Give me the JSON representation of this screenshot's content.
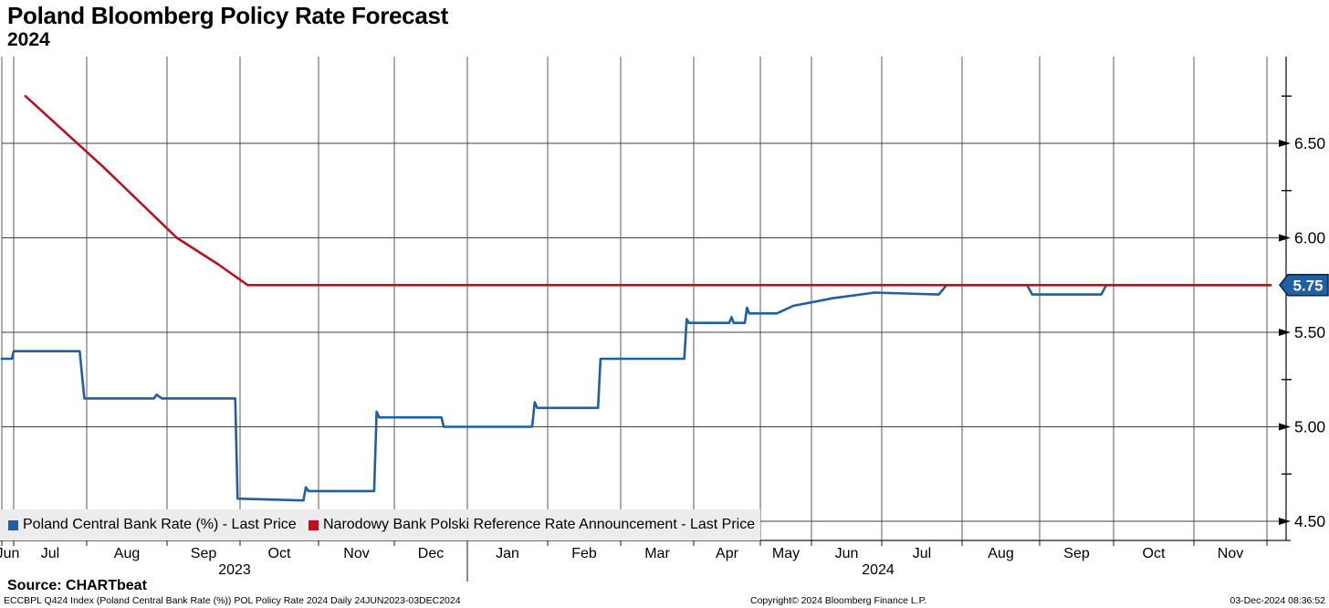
{
  "header": {
    "title": "Poland Bloomberg Policy Rate Forecast",
    "subtitle": "2024"
  },
  "legend": {
    "items": [
      {
        "label": "Poland Central Bank Rate (%) - Last Price",
        "color": "#1f5fa5"
      },
      {
        "label": "Narodowy Bank Polski Reference Rate Announcement - Last Price",
        "color": "#be0f1e"
      }
    ]
  },
  "footer": {
    "source": "Source: CHARTbeat",
    "ticker_line": "ECCBPL Q424 Index (Poland Central Bank Rate (%)) POL Policy Rate 2024  Daily 24JUN2023-03DEC2024",
    "copyright": "Copyright© 2024 Bloomberg Finance L.P.",
    "timestamp": "03-Dec-2024 08:36:52"
  },
  "colors": {
    "blue": "#1f5fa5",
    "red": "#be0f1e",
    "grid_horizontal": "#3f3f3f",
    "grid_vertical": "#5a5a5a",
    "axis": "#1a1a1a",
    "legend_bg": "#ececec",
    "tag_bg": "#1f5fa5",
    "tag_border": "#0a2540",
    "tag_text": "#ffffff"
  },
  "chart_data": {
    "type": "line",
    "title": "Poland Bloomberg Policy Rate Forecast 2024",
    "grid": true,
    "legend_position": "bottom",
    "y_axis": {
      "side": "right",
      "range": [
        4.3,
        7.05
      ],
      "tick_values": [
        6.5,
        6.0,
        5.5,
        5.0,
        4.5
      ],
      "tick_labels": [
        "6.50",
        "6.00",
        "5.50",
        "5.00",
        "4.50"
      ],
      "minor_tick_values": [
        6.75,
        6.25,
        5.25,
        4.75
      ],
      "last_price_value": 5.75,
      "last_price_label": "5.75"
    },
    "x_axis": {
      "start": "2023-06-24",
      "end": "2024-12-03",
      "month_labels": [
        "Jun",
        "Jul",
        "Aug",
        "Sep",
        "Oct",
        "Nov",
        "Dec",
        "Jan",
        "Feb",
        "Mar",
        "Apr",
        "May",
        "Jun",
        "Jul",
        "Aug",
        "Sep",
        "Oct",
        "Nov"
      ],
      "year_labels": [
        "2023",
        "2024"
      ]
    },
    "series": [
      {
        "name": "Poland Central Bank Rate (%) - Last Price",
        "color": "#1f5fa5",
        "points": [
          [
            "2023-06-24",
            5.36
          ],
          [
            "2023-06-30",
            5.36
          ],
          [
            "2023-07-01",
            5.4
          ],
          [
            "2023-07-29",
            5.4
          ],
          [
            "2023-07-31",
            5.15
          ],
          [
            "2023-08-27",
            5.15
          ],
          [
            "2023-08-28",
            5.17
          ],
          [
            "2023-08-30",
            5.15
          ],
          [
            "2023-09-29",
            5.15
          ],
          [
            "2023-09-30",
            4.62
          ],
          [
            "2023-10-26",
            4.61
          ],
          [
            "2023-10-27",
            4.68
          ],
          [
            "2023-10-28",
            4.66
          ],
          [
            "2023-11-23",
            4.66
          ],
          [
            "2023-11-24",
            5.08
          ],
          [
            "2023-11-25",
            5.05
          ],
          [
            "2023-12-21",
            5.05
          ],
          [
            "2023-12-22",
            5.0
          ],
          [
            "2024-01-26",
            5.0
          ],
          [
            "2024-01-27",
            5.13
          ],
          [
            "2024-01-28",
            5.1
          ],
          [
            "2024-02-21",
            5.1
          ],
          [
            "2024-02-22",
            5.36
          ],
          [
            "2024-03-28",
            5.36
          ],
          [
            "2024-03-29",
            5.57
          ],
          [
            "2024-03-30",
            5.55
          ],
          [
            "2024-04-17",
            5.55
          ],
          [
            "2024-04-18",
            5.58
          ],
          [
            "2024-04-19",
            5.55
          ],
          [
            "2024-04-24",
            5.55
          ],
          [
            "2024-04-25",
            5.63
          ],
          [
            "2024-04-26",
            5.6
          ],
          [
            "2024-05-11",
            5.6
          ],
          [
            "2024-05-21",
            5.64
          ],
          [
            "2024-06-10",
            5.68
          ],
          [
            "2024-06-28",
            5.71
          ],
          [
            "2024-07-23",
            5.7
          ],
          [
            "2024-07-26",
            5.75
          ],
          [
            "2024-08-27",
            5.75
          ],
          [
            "2024-08-29",
            5.7
          ],
          [
            "2024-09-26",
            5.7
          ],
          [
            "2024-09-28",
            5.75
          ],
          [
            "2024-12-03",
            5.75
          ]
        ]
      },
      {
        "name": "Narodowy Bank Polski Reference Rate Announcement - Last Price",
        "color": "#be0f1e",
        "points": [
          [
            "2023-07-06",
            6.75
          ],
          [
            "2023-08-07",
            6.38
          ],
          [
            "2023-09-05",
            6.0
          ],
          [
            "2023-09-22",
            5.86
          ],
          [
            "2023-10-04",
            5.75
          ],
          [
            "2024-12-03",
            5.75
          ]
        ]
      }
    ]
  }
}
